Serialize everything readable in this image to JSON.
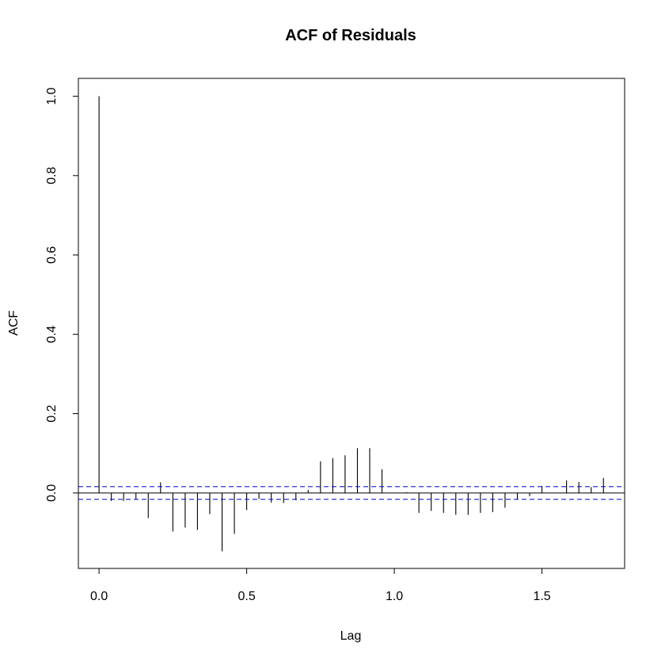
{
  "chart_data": {
    "type": "bar",
    "title": "ACF of Residuals",
    "xlabel": "Lag",
    "ylabel": "ACF",
    "xlim": [
      -0.07,
      1.78
    ],
    "ylim": [
      -0.19,
      1.045
    ],
    "xticks": [
      "0.0",
      "0.5",
      "1.0",
      "1.5"
    ],
    "yticks": [
      "0.0",
      "0.2",
      "0.4",
      "0.6",
      "0.8",
      "1.0"
    ],
    "confidence_band": 0.016,
    "colors": {
      "bars": "#000000",
      "confidence": "#0000cc",
      "zero_line": "#000000"
    },
    "lags": [
      0,
      0.0417,
      0.0833,
      0.125,
      0.1667,
      0.2083,
      0.25,
      0.2917,
      0.3333,
      0.375,
      0.4167,
      0.4583,
      0.5,
      0.5417,
      0.5833,
      0.625,
      0.6667,
      0.7083,
      0.75,
      0.7917,
      0.8333,
      0.875,
      0.9167,
      0.9583,
      1.0,
      1.0417,
      1.0833,
      1.125,
      1.1667,
      1.2083,
      1.25,
      1.2917,
      1.3333,
      1.375,
      1.4167,
      1.4583,
      1.5,
      1.5417,
      1.5833,
      1.625,
      1.6667,
      1.7083
    ],
    "values": [
      1.0,
      -0.02,
      -0.02,
      -0.015,
      -0.063,
      0.027,
      -0.097,
      -0.087,
      -0.093,
      -0.053,
      -0.147,
      -0.103,
      -0.043,
      -0.015,
      -0.024,
      -0.025,
      -0.018,
      0.008,
      0.08,
      0.088,
      0.095,
      0.113,
      0.113,
      0.06,
      0.0,
      0.002,
      -0.05,
      -0.045,
      -0.05,
      -0.055,
      -0.055,
      -0.05,
      -0.048,
      -0.037,
      -0.015,
      -0.008,
      0.018,
      0.0,
      0.032,
      0.028,
      0.015,
      0.038
    ]
  }
}
